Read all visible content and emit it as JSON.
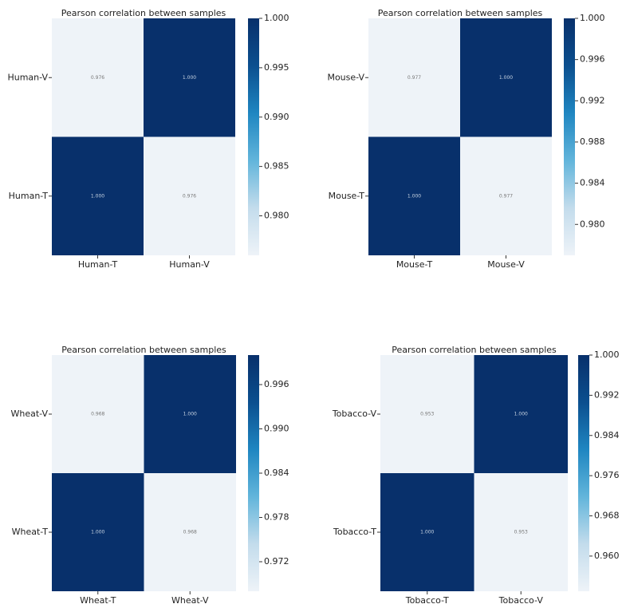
{
  "chart_data": [
    {
      "type": "heatmap",
      "title": "Pearson correlation between samples",
      "x_categories": [
        "Human-T",
        "Human-V"
      ],
      "y_categories": [
        "Human-V",
        "Human-T"
      ],
      "values": [
        [
          0.976,
          1.0
        ],
        [
          1.0,
          0.976
        ]
      ],
      "value_labels": [
        [
          "0.976",
          "1.000"
        ],
        [
          "1.000",
          "0.976"
        ]
      ],
      "clim": [
        0.976,
        1.0
      ],
      "cticks": [
        {
          "value": 1.0,
          "label": "1.000"
        },
        0.995,
        {
          "value": 0.99,
          "label": "0.990"
        },
        0.985,
        {
          "value": 0.98,
          "label": "0.980"
        }
      ],
      "colorscale": [
        "#eef3f8",
        "#c3dcec",
        "#62b5db",
        "#1f86c1",
        "#0b4f8f",
        "#08306b"
      ]
    },
    {
      "type": "heatmap",
      "title": "Pearson correlation between samples",
      "x_categories": [
        "Mouse-T",
        "Mouse-V"
      ],
      "y_categories": [
        "Mouse-V",
        "Mouse-T"
      ],
      "values": [
        [
          0.977,
          1.0
        ],
        [
          1.0,
          0.977
        ]
      ],
      "value_labels": [
        [
          "0.977",
          "1.000"
        ],
        [
          "1.000",
          "0.977"
        ]
      ],
      "clim": [
        0.977,
        1.0
      ],
      "cticks": [
        {
          "value": 1.0,
          "label": "1.000"
        },
        0.996,
        0.992,
        0.988,
        0.984,
        {
          "value": 0.98,
          "label": "0.980"
        }
      ],
      "colorscale": [
        "#eef3f8",
        "#c3dcec",
        "#62b5db",
        "#1f86c1",
        "#0b4f8f",
        "#08306b"
      ]
    },
    {
      "type": "heatmap",
      "title": "Pearson correlation between samples",
      "x_categories": [
        "Wheat-T",
        "Wheat-V"
      ],
      "y_categories": [
        "Wheat-V",
        "Wheat-T"
      ],
      "values": [
        [
          0.968,
          1.0
        ],
        [
          1.0,
          0.968
        ]
      ],
      "value_labels": [
        [
          "0.968",
          "1.000"
        ],
        [
          "1.000",
          "0.968"
        ]
      ],
      "clim": [
        0.968,
        1.0
      ],
      "cticks": [
        0.996,
        {
          "value": 0.99,
          "label": "0.990"
        },
        0.984,
        0.978,
        0.972
      ],
      "colorscale": [
        "#eef3f8",
        "#c3dcec",
        "#62b5db",
        "#1f86c1",
        "#0b4f8f",
        "#08306b"
      ]
    },
    {
      "type": "heatmap",
      "title": "Pearson correlation between samples",
      "x_categories": [
        "Tobacco-T",
        "Tobacco-V"
      ],
      "y_categories": [
        "Tobacco-V",
        "Tobacco-T"
      ],
      "values": [
        [
          0.953,
          1.0
        ],
        [
          1.0,
          0.953
        ]
      ],
      "value_labels": [
        [
          "0.953",
          "1.000"
        ],
        [
          "1.000",
          "0.953"
        ]
      ],
      "clim": [
        0.953,
        1.0
      ],
      "cticks": [
        {
          "value": 1.0,
          "label": "1.000"
        },
        0.992,
        0.984,
        0.976,
        0.968,
        {
          "value": 0.96,
          "label": "0.960"
        }
      ],
      "colorscale": [
        "#eef3f8",
        "#c3dcec",
        "#62b5db",
        "#1f86c1",
        "#0b4f8f",
        "#08306b"
      ]
    }
  ]
}
